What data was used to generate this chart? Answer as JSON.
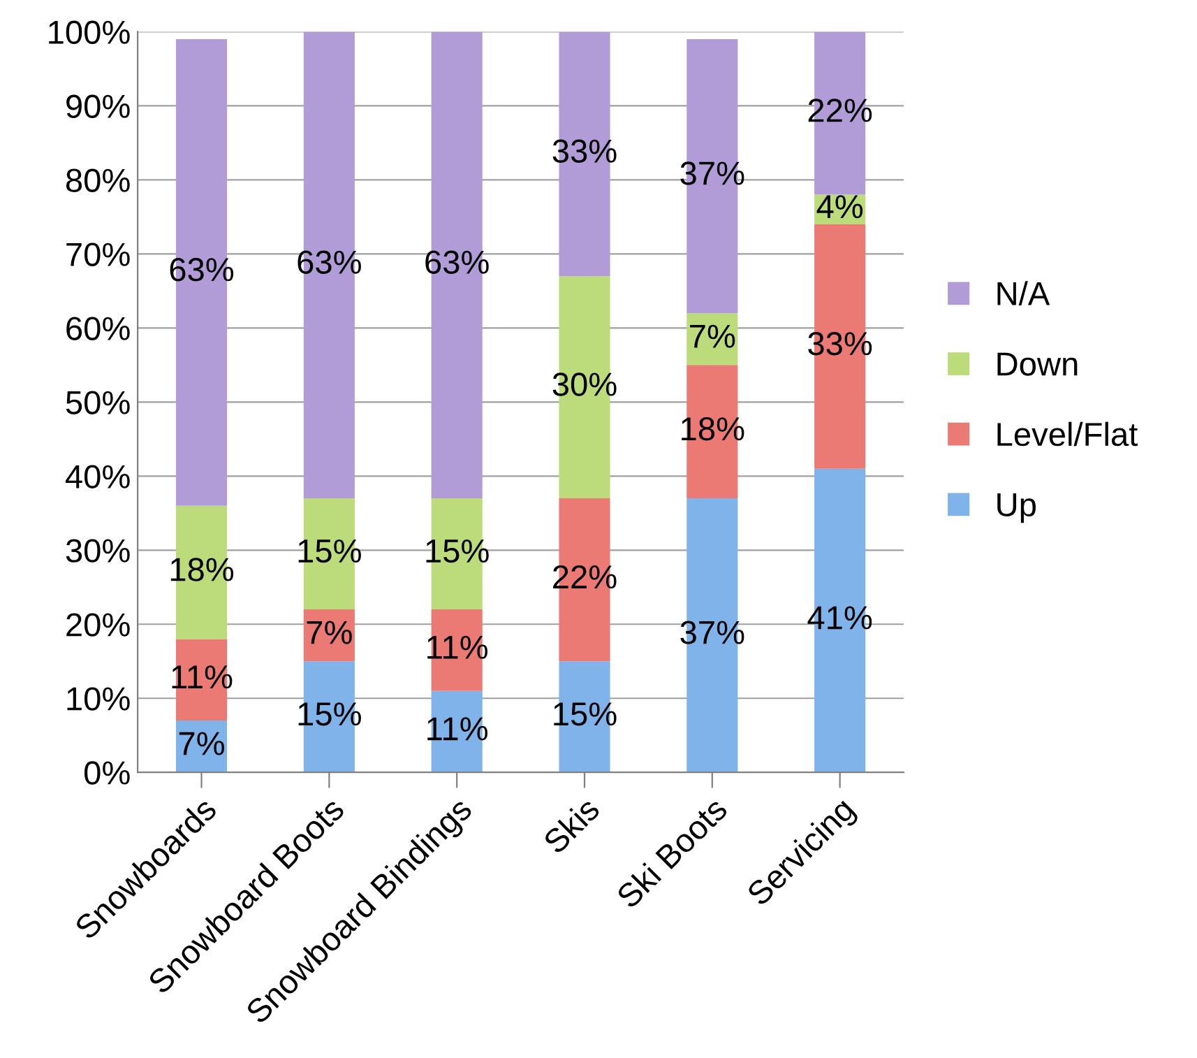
{
  "chart_data": {
    "type": "bar",
    "stacked": true,
    "categories": [
      "Snowboards",
      "Snowboard Boots",
      "Snowboard Bindings",
      "Skis",
      "Ski Boots",
      "Servicing"
    ],
    "series": [
      {
        "name": "Up",
        "color": "#7fb3ea",
        "values": [
          7,
          15,
          11,
          15,
          37,
          41
        ],
        "value_labels": [
          "7%",
          "15%",
          "11%",
          "15%",
          "37%",
          "41%"
        ]
      },
      {
        "name": "Level/Flat",
        "color": "#ec7a74",
        "values": [
          11,
          7,
          11,
          22,
          18,
          33
        ],
        "value_labels": [
          "11%",
          "7%",
          "11%",
          "22%",
          "18%",
          "33%"
        ]
      },
      {
        "name": "Down",
        "color": "#bcdb7a",
        "values": [
          18,
          15,
          15,
          30,
          7,
          4
        ],
        "value_labels": [
          "18%",
          "15%",
          "15%",
          "30%",
          "7%",
          "4%"
        ]
      },
      {
        "name": "N/A",
        "color": "#b29cd8",
        "values": [
          63,
          63,
          63,
          33,
          37,
          22
        ],
        "value_labels": [
          "63%",
          "63%",
          "63%",
          "33%",
          "37%",
          "22%"
        ]
      }
    ],
    "ylim": [
      0,
      100
    ],
    "yticks": [
      {
        "value": 0,
        "label": "0%"
      },
      {
        "value": 10,
        "label": "10%"
      },
      {
        "value": 20,
        "label": "20%"
      },
      {
        "value": 30,
        "label": "30%"
      },
      {
        "value": 40,
        "label": "40%"
      },
      {
        "value": 50,
        "label": "50%"
      },
      {
        "value": 60,
        "label": "60%"
      },
      {
        "value": 70,
        "label": "70%"
      },
      {
        "value": 80,
        "label": "80%"
      },
      {
        "value": 90,
        "label": "90%"
      },
      {
        "value": 100,
        "label": "100%"
      }
    ],
    "grid": "y",
    "legend": "right"
  }
}
